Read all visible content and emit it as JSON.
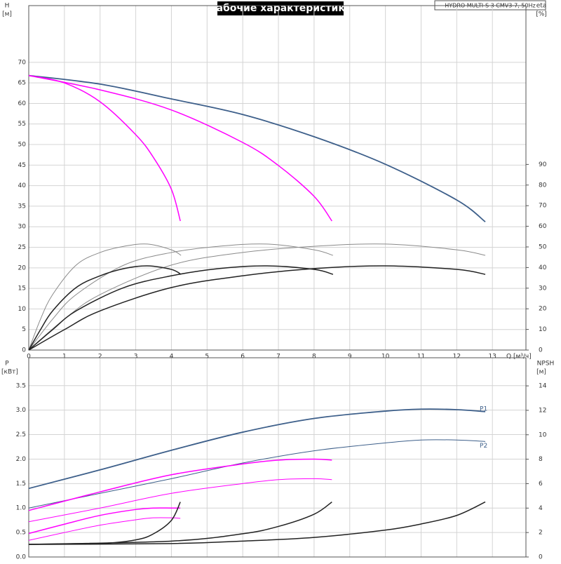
{
  "chart_data": [
    {
      "type": "line",
      "title": "Рабочие характеристики",
      "model": "HYDRO MULTI-S 3 CMV3-7, 50Hz",
      "y_label": "H",
      "y_unit": "[м]",
      "y2_label": "eta",
      "y2_unit": "[%]",
      "x_label": "Q [м³/ч]",
      "xlim": [
        0,
        13.94
      ],
      "xticks": [
        0,
        1,
        2,
        3,
        4,
        5,
        6,
        7,
        8,
        9,
        10,
        11,
        12,
        13
      ],
      "ylim": [
        0,
        83.8
      ],
      "yticks": [
        0,
        5,
        10,
        15,
        20,
        25,
        30,
        35,
        40,
        45,
        50,
        55,
        60,
        65,
        70
      ],
      "y2lim": [
        0,
        167
      ],
      "y2ticks": [
        0,
        10,
        20,
        30,
        40,
        50,
        60,
        70,
        80,
        90
      ],
      "grid": true,
      "series": [
        {
          "color": "#3d5f8a",
          "width": 1.8,
          "x": [
            0,
            2,
            4,
            6,
            8,
            10,
            12,
            12.8
          ],
          "values": [
            66.8,
            64.7,
            61.1,
            57.3,
            51.9,
            45.2,
            36.5,
            31.2
          ]
        },
        {
          "color": "#ff00ff",
          "width": 1.5,
          "x": [
            0,
            2,
            4,
            6,
            7,
            8,
            8.5
          ],
          "values": [
            66.8,
            63.3,
            58.4,
            50.5,
            44.9,
            37.4,
            31.4
          ]
        },
        {
          "color": "#ff00ff",
          "width": 1.5,
          "x": [
            0,
            1,
            2,
            3,
            3.5,
            4,
            4.25
          ],
          "values": [
            66.8,
            65,
            60.4,
            52.4,
            46.8,
            39.1,
            31.4
          ]
        },
        {
          "color": "#8a8a8a",
          "width": 1,
          "axis": "y2",
          "x": [
            0,
            1,
            2,
            4,
            6,
            8,
            10,
            12,
            12.8
          ],
          "values": [
            0,
            15,
            26.9,
            41.2,
            47.3,
            50.3,
            51.4,
            48.6,
            45.9
          ]
        },
        {
          "color": "#8a8a8a",
          "width": 1,
          "axis": "y2",
          "x": [
            0,
            0.67,
            1.33,
            2.67,
            4,
            5.33,
            6.67,
            8,
            8.53
          ],
          "values": [
            0,
            15,
            26.9,
            41.2,
            47.3,
            50.3,
            51.4,
            48.6,
            45.9
          ]
        },
        {
          "color": "#8a8a8a",
          "width": 1,
          "axis": "y2",
          "x": [
            0,
            0.33,
            0.67,
            1.33,
            2,
            2.67,
            3.33,
            4,
            4.27
          ],
          "values": [
            0,
            15,
            26.9,
            41.2,
            47.3,
            50.3,
            51.4,
            48.6,
            45.9
          ]
        },
        {
          "color": "#222222",
          "width": 1.5,
          "axis": "y2",
          "x": [
            0,
            1,
            2,
            4,
            6,
            8,
            10,
            12,
            12.8
          ],
          "values": [
            0,
            9.9,
            19,
            30.3,
            36,
            39.5,
            40.8,
            39.1,
            36.7
          ]
        },
        {
          "color": "#222222",
          "width": 1.5,
          "axis": "y2",
          "x": [
            0,
            0.67,
            1.33,
            2.67,
            4,
            5.33,
            6.67,
            8,
            8.53
          ],
          "values": [
            0,
            9.9,
            19,
            30.3,
            36,
            39.5,
            40.8,
            39.1,
            36.7
          ]
        },
        {
          "color": "#222222",
          "width": 1.5,
          "axis": "y2",
          "x": [
            0,
            0.33,
            0.67,
            1.33,
            2,
            2.67,
            3.33,
            4,
            4.27
          ],
          "values": [
            0,
            9.9,
            19,
            30.3,
            36,
            39.5,
            40.8,
            39.1,
            36.7
          ]
        }
      ]
    },
    {
      "type": "line",
      "y_label": "P",
      "y_unit": "[кВт]",
      "y2_label": "NPSH",
      "y2_unit": "[м]",
      "xlim": [
        0,
        13.94
      ],
      "ylim": [
        0,
        4.07
      ],
      "yticks": [
        {
          "value": 0,
          "label": "0.0"
        },
        0.5,
        {
          "value": 1,
          "label": "1.0"
        },
        1.5,
        {
          "value": 2,
          "label": "2.0"
        },
        2.5,
        {
          "value": 3,
          "label": "3.0"
        },
        3.5
      ],
      "y2lim": [
        0,
        16.3
      ],
      "y2ticks": [
        0,
        2,
        4,
        6,
        8,
        10,
        12,
        14
      ],
      "grid": true,
      "series": [
        {
          "name": "P1",
          "color": "#3d5f8a",
          "width": 1.8,
          "x": [
            0,
            2,
            4,
            6,
            8,
            10,
            11,
            12,
            12.8
          ],
          "values": [
            1.4,
            1.78,
            2.18,
            2.55,
            2.83,
            2.98,
            3.02,
            3.01,
            2.97
          ]
        },
        {
          "name": "P2",
          "color": "#3d5f8a",
          "width": 1,
          "x": [
            0,
            2,
            4,
            6,
            8,
            10,
            11,
            12,
            12.8
          ],
          "values": [
            1.0,
            1.3,
            1.6,
            1.92,
            2.17,
            2.33,
            2.39,
            2.39,
            2.36
          ]
        },
        {
          "color": "#ff00ff",
          "width": 1.5,
          "x": [
            0,
            2,
            4,
            6,
            7,
            8,
            8.5
          ],
          "values": [
            0.95,
            1.33,
            1.68,
            1.9,
            1.98,
            2.0,
            1.98
          ]
        },
        {
          "color": "#ff00ff",
          "width": 1,
          "x": [
            0,
            2,
            4,
            6,
            7,
            8,
            8.5
          ],
          "values": [
            0.72,
            1.0,
            1.3,
            1.5,
            1.58,
            1.6,
            1.58
          ]
        },
        {
          "color": "#ff00ff",
          "width": 1.5,
          "x": [
            0,
            1,
            2,
            3,
            3.5,
            4,
            4.25
          ],
          "values": [
            0.48,
            0.67,
            0.85,
            0.97,
            1.0,
            1.0,
            1.0
          ]
        },
        {
          "color": "#ff00ff",
          "width": 1,
          "x": [
            0,
            1,
            2,
            3,
            3.5,
            4,
            4.25
          ],
          "values": [
            0.34,
            0.5,
            0.65,
            0.76,
            0.8,
            0.8,
            0.79
          ]
        },
        {
          "color": "#222222",
          "width": 1.5,
          "axis": "y2",
          "x": [
            0,
            4,
            6,
            8,
            10,
            11,
            12,
            12.8
          ],
          "values": [
            1.03,
            1.1,
            1.3,
            1.6,
            2.2,
            2.7,
            3.4,
            4.5
          ]
        },
        {
          "color": "#222222",
          "width": 1.5,
          "axis": "y2",
          "x": [
            0,
            4,
            6,
            7,
            8,
            8.5
          ],
          "values": [
            1.03,
            1.3,
            1.9,
            2.5,
            3.5,
            4.5
          ]
        },
        {
          "color": "#222222",
          "width": 1.5,
          "axis": "y2",
          "x": [
            0,
            2,
            3,
            3.5,
            4,
            4.25
          ],
          "values": [
            1.03,
            1.1,
            1.4,
            1.9,
            3.0,
            4.5
          ]
        }
      ]
    }
  ]
}
